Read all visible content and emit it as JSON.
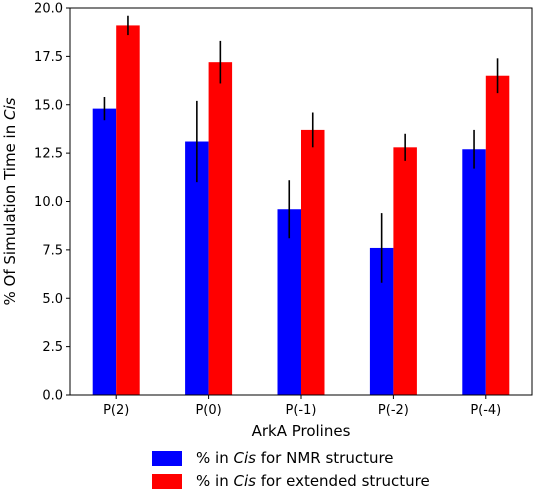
{
  "chart_data": {
    "type": "bar",
    "title": "",
    "xlabel": "ArkA Prolines",
    "ylabel_prefix": "% Of Simulation Time in ",
    "ylabel_italic": "Cis",
    "categories": [
      "P(2)",
      "P(0)",
      "P(-1)",
      "P(-2)",
      "P(-4)"
    ],
    "ylim": [
      0,
      20
    ],
    "yticks": [
      "0.0",
      "2.5",
      "5.0",
      "7.5",
      "10.0",
      "12.5",
      "15.0",
      "17.5",
      "20.0"
    ],
    "grid": false,
    "legend_position": "bottom",
    "series": [
      {
        "legend_prefix": "% in ",
        "legend_italic": "Cis",
        "legend_suffix": " for NMR structure",
        "color": "#0000ff",
        "values": [
          14.8,
          13.1,
          9.6,
          7.6,
          12.7
        ],
        "errors": [
          0.6,
          2.1,
          1.5,
          1.8,
          1.0
        ]
      },
      {
        "legend_prefix": "% in ",
        "legend_italic": "Cis",
        "legend_suffix": " for extended structure",
        "color": "#ff0000",
        "values": [
          19.1,
          17.2,
          13.7,
          12.8,
          16.5
        ],
        "errors": [
          0.5,
          1.1,
          0.9,
          0.7,
          0.9
        ]
      }
    ]
  }
}
